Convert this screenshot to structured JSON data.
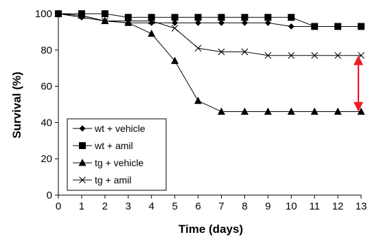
{
  "chart_data": {
    "type": "line",
    "title": "",
    "xlabel": "Time (days)",
    "ylabel": "Survival (%)",
    "xlim": [
      0,
      13
    ],
    "ylim": [
      0,
      100
    ],
    "x": [
      0,
      1,
      2,
      3,
      4,
      5,
      6,
      7,
      8,
      9,
      10,
      11,
      12,
      13
    ],
    "x_ticks": [
      "0",
      "1",
      "2",
      "3",
      "4",
      "5",
      "6",
      "7",
      "8",
      "9",
      "10",
      "11",
      "12",
      "13"
    ],
    "y_ticks": [
      "0",
      "20",
      "40",
      "60",
      "80",
      "100"
    ],
    "grid": false,
    "legend_position": "bottom-left",
    "series": [
      {
        "name": "wt + vehicle",
        "marker": "diamond",
        "values": [
          100,
          98,
          96,
          95,
          95,
          95,
          95,
          95,
          95,
          95,
          93,
          93,
          93,
          93
        ]
      },
      {
        "name": "wt + amil",
        "marker": "square",
        "values": [
          100,
          100,
          100,
          98,
          98,
          98,
          98,
          98,
          98,
          98,
          98,
          93,
          93,
          93
        ]
      },
      {
        "name": "tg + vehicle",
        "marker": "triangle",
        "values": [
          100,
          99,
          96,
          95,
          89,
          74,
          52,
          46,
          46,
          46,
          46,
          46,
          46,
          46
        ]
      },
      {
        "name": "tg + amil",
        "marker": "x",
        "values": [
          100,
          99,
          96,
          96,
          96,
          92,
          81,
          79,
          79,
          77,
          77,
          77,
          77,
          77
        ]
      }
    ],
    "annotations": [
      {
        "type": "double-arrow",
        "x": 13,
        "y_from": 46,
        "y_to": 77,
        "color": "#ee1c25"
      }
    ]
  }
}
